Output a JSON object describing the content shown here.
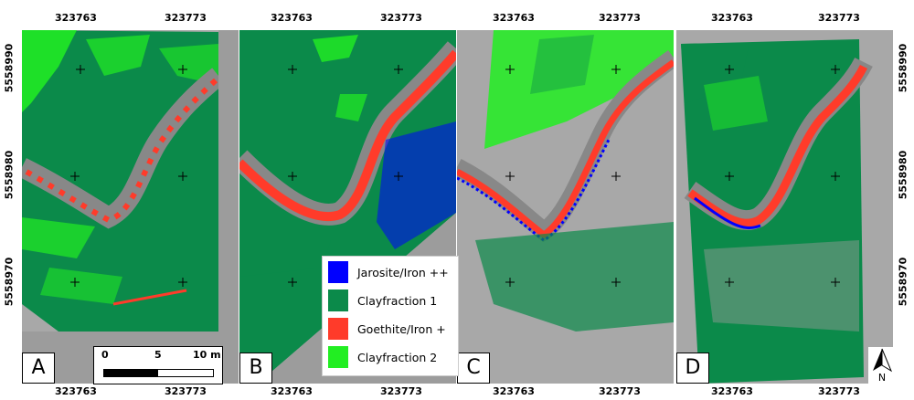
{
  "x_coords": {
    "left": "323763",
    "right": "323773"
  },
  "y_coords": {
    "top": "5558990",
    "mid": "5558980",
    "bottom": "5558970"
  },
  "panels": [
    {
      "label": "A"
    },
    {
      "label": "B"
    },
    {
      "label": "C"
    },
    {
      "label": "D"
    }
  ],
  "legend": {
    "items": [
      {
        "label": "Jarosite/Iron ++",
        "color": "#0000ff"
      },
      {
        "label": "Clayfraction 1",
        "color": "#0b8a4a"
      },
      {
        "label": "Goethite/Iron +",
        "color": "#ff3b2a"
      },
      {
        "label": "Clayfraction 2",
        "color": "#22ee22"
      }
    ]
  },
  "scale_bar": {
    "ticks": [
      "0",
      "5",
      "10 m"
    ]
  },
  "north_arrow": {
    "label": "N"
  }
}
